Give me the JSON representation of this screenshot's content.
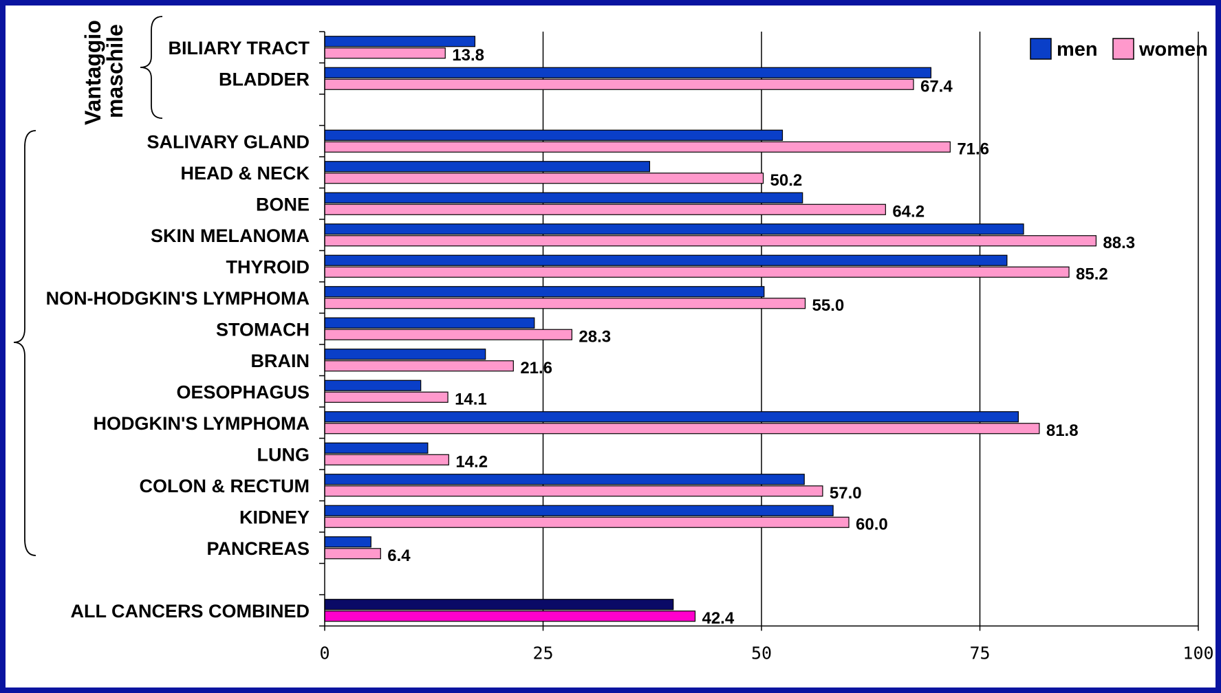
{
  "chart_data": {
    "type": "bar",
    "orientation": "horizontal",
    "categories": [
      "BILIARY TRACT",
      "BLADDER",
      "",
      "SALIVARY GLAND",
      "HEAD & NECK",
      "BONE",
      "SKIN MELANOMA",
      "THYROID",
      "NON-HODGKIN'S LYMPHOMA",
      "STOMACH",
      "BRAIN",
      "OESOPHAGUS",
      "HODGKIN'S LYMPHOMA",
      "LUNG",
      "COLON & RECTUM",
      "KIDNEY",
      "PANCREAS",
      "",
      "ALL CANCERS COMBINED"
    ],
    "series": [
      {
        "name": "men",
        "color": "#0a3fc8",
        "values": [
          17.2,
          69.4,
          null,
          52.4,
          37.2,
          54.7,
          80.0,
          78.1,
          50.3,
          24.0,
          18.4,
          11.0,
          79.4,
          11.8,
          54.9,
          58.2,
          5.3,
          null,
          39.9
        ]
      },
      {
        "name": "women",
        "color": "#ff99cc",
        "values": [
          13.8,
          67.4,
          null,
          71.6,
          50.2,
          64.2,
          88.3,
          85.2,
          55.0,
          28.3,
          21.6,
          14.1,
          81.8,
          14.2,
          57.0,
          60.0,
          6.4,
          null,
          42.4
        ]
      }
    ],
    "data_labels": [
      "13.8",
      "67.4",
      "",
      "71.6",
      "50.2",
      "64.2",
      "88.3",
      "85.2",
      "55.0",
      "28.3",
      "21.6",
      "14.1",
      "81.8",
      "14.2",
      "57.0",
      "60.0",
      "6.4",
      "",
      "42.4"
    ],
    "highlight": {
      "index": 18,
      "men_color": "#0a0a66",
      "women_color": "#ff00cc"
    },
    "xlim": [
      0,
      100
    ],
    "xticks": [
      "0",
      "25",
      "50",
      "75",
      "100"
    ],
    "grid": "vertical",
    "legend": {
      "position": "top-right",
      "entries": [
        "men",
        "women"
      ]
    },
    "title": "",
    "xlabel": "",
    "ylabel": ""
  },
  "annotation": {
    "side_label_line1": "Vantaggio",
    "side_label_line2": "maschile"
  }
}
